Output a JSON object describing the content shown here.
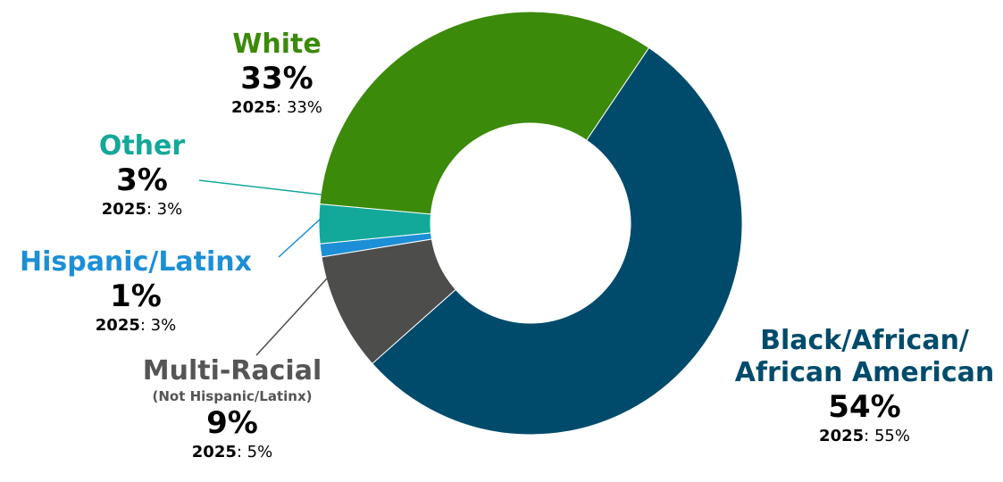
{
  "chart_data": {
    "type": "donut",
    "categories": [
      "Black/African/ African American",
      "Multi-Racial",
      "Hispanic/Latinx",
      "Other",
      "White"
    ],
    "values": [
      54,
      9,
      1,
      3,
      33
    ],
    "prior_label": "2025",
    "prior_values": [
      55,
      5,
      3,
      3,
      33
    ],
    "colors": [
      "#004B6B",
      "#4D4D4B",
      "#1C8FD6",
      "#12A89A",
      "#3B8A0A"
    ],
    "labels": {
      "black": {
        "name_line1": "Black/African/",
        "name_line2": "African American",
        "pct": "54%",
        "prior_year": "2025",
        "prior_value": ": 55%"
      },
      "multi": {
        "name": "Multi-Racial",
        "sub": "(Not Hispanic/Latinx)",
        "pct": "9%",
        "prior_year": "2025",
        "prior_value": ": 5%"
      },
      "hispanic": {
        "name": "Hispanic/Latinx",
        "pct": "1%",
        "prior_year": "2025",
        "prior_value": ": 3%"
      },
      "other": {
        "name": "Other",
        "pct": "3%",
        "prior_year": "2025",
        "prior_value": ": 3%"
      },
      "white": {
        "name": "White",
        "pct": "33%",
        "prior_year": "2025",
        "prior_value": ": 33%"
      }
    }
  }
}
